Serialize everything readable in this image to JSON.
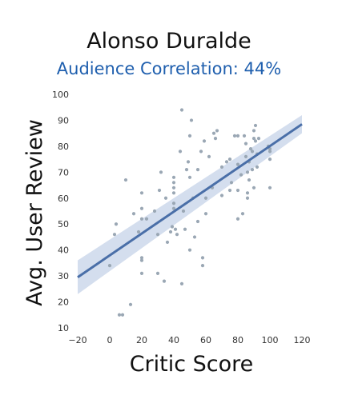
{
  "chart_data": {
    "type": "scatter",
    "title": "Alonso Duralde",
    "subtitle": "Audience Correlation: 44%",
    "xlabel": "Critic Score",
    "ylabel": "Avg. User Review",
    "xlim": [
      -20,
      120
    ],
    "ylim": [
      10,
      100
    ],
    "xticks": [
      -20,
      0,
      20,
      40,
      60,
      80,
      100,
      120
    ],
    "yticks": [
      10,
      20,
      30,
      40,
      50,
      60,
      70,
      80,
      90,
      100
    ],
    "grid": false,
    "colors": {
      "points": "#9aa7b4",
      "regression": "#4a6fa8",
      "band": "#c9d6ea"
    },
    "regression": {
      "x": [
        -20,
        120
      ],
      "y": [
        29.5,
        88.5
      ],
      "ci_lower": [
        23,
        85
      ],
      "ci_upper": [
        36,
        92
      ]
    },
    "points": [
      {
        "x": 0,
        "y": 34
      },
      {
        "x": 3,
        "y": 46
      },
      {
        "x": 4,
        "y": 50
      },
      {
        "x": 6,
        "y": 15
      },
      {
        "x": 8,
        "y": 15
      },
      {
        "x": 10,
        "y": 67
      },
      {
        "x": 13,
        "y": 19
      },
      {
        "x": 15,
        "y": 54
      },
      {
        "x": 18,
        "y": 47
      },
      {
        "x": 20,
        "y": 62
      },
      {
        "x": 20,
        "y": 56
      },
      {
        "x": 20,
        "y": 52
      },
      {
        "x": 20,
        "y": 37
      },
      {
        "x": 20,
        "y": 36
      },
      {
        "x": 20,
        "y": 31
      },
      {
        "x": 23,
        "y": 52
      },
      {
        "x": 28,
        "y": 55
      },
      {
        "x": 30,
        "y": 46
      },
      {
        "x": 30,
        "y": 31
      },
      {
        "x": 31,
        "y": 63
      },
      {
        "x": 32,
        "y": 70
      },
      {
        "x": 34,
        "y": 28
      },
      {
        "x": 35,
        "y": 60
      },
      {
        "x": 36,
        "y": 43
      },
      {
        "x": 38,
        "y": 47
      },
      {
        "x": 39,
        "y": 49
      },
      {
        "x": 40,
        "y": 68
      },
      {
        "x": 40,
        "y": 66
      },
      {
        "x": 40,
        "y": 64
      },
      {
        "x": 40,
        "y": 62
      },
      {
        "x": 40,
        "y": 58
      },
      {
        "x": 40,
        "y": 56
      },
      {
        "x": 41,
        "y": 48
      },
      {
        "x": 42,
        "y": 46
      },
      {
        "x": 44,
        "y": 78
      },
      {
        "x": 45,
        "y": 94
      },
      {
        "x": 45,
        "y": 27
      },
      {
        "x": 46,
        "y": 55
      },
      {
        "x": 47,
        "y": 48
      },
      {
        "x": 48,
        "y": 71
      },
      {
        "x": 49,
        "y": 74
      },
      {
        "x": 50,
        "y": 84
      },
      {
        "x": 50,
        "y": 68
      },
      {
        "x": 50,
        "y": 40
      },
      {
        "x": 51,
        "y": 90
      },
      {
        "x": 52,
        "y": 60
      },
      {
        "x": 53,
        "y": 45
      },
      {
        "x": 55,
        "y": 71
      },
      {
        "x": 55,
        "y": 51
      },
      {
        "x": 57,
        "y": 78
      },
      {
        "x": 58,
        "y": 37
      },
      {
        "x": 58,
        "y": 34
      },
      {
        "x": 59,
        "y": 82
      },
      {
        "x": 60,
        "y": 60
      },
      {
        "x": 60,
        "y": 54
      },
      {
        "x": 62,
        "y": 76
      },
      {
        "x": 64,
        "y": 64
      },
      {
        "x": 65,
        "y": 85
      },
      {
        "x": 66,
        "y": 83
      },
      {
        "x": 67,
        "y": 86
      },
      {
        "x": 70,
        "y": 72
      },
      {
        "x": 70,
        "y": 61
      },
      {
        "x": 73,
        "y": 74
      },
      {
        "x": 75,
        "y": 75
      },
      {
        "x": 75,
        "y": 63
      },
      {
        "x": 76,
        "y": 66
      },
      {
        "x": 78,
        "y": 84
      },
      {
        "x": 80,
        "y": 84
      },
      {
        "x": 80,
        "y": 73
      },
      {
        "x": 80,
        "y": 63
      },
      {
        "x": 80,
        "y": 52
      },
      {
        "x": 82,
        "y": 69
      },
      {
        "x": 83,
        "y": 54
      },
      {
        "x": 84,
        "y": 84
      },
      {
        "x": 85,
        "y": 81
      },
      {
        "x": 85,
        "y": 76
      },
      {
        "x": 86,
        "y": 70
      },
      {
        "x": 86,
        "y": 62
      },
      {
        "x": 86,
        "y": 60
      },
      {
        "x": 87,
        "y": 74
      },
      {
        "x": 87,
        "y": 67
      },
      {
        "x": 88,
        "y": 79
      },
      {
        "x": 89,
        "y": 78
      },
      {
        "x": 89,
        "y": 71
      },
      {
        "x": 90,
        "y": 86
      },
      {
        "x": 90,
        "y": 83
      },
      {
        "x": 90,
        "y": 64
      },
      {
        "x": 91,
        "y": 88
      },
      {
        "x": 91,
        "y": 82
      },
      {
        "x": 92,
        "y": 77
      },
      {
        "x": 92,
        "y": 72
      },
      {
        "x": 93,
        "y": 83
      },
      {
        "x": 99,
        "y": 80
      },
      {
        "x": 100,
        "y": 79
      },
      {
        "x": 100,
        "y": 78
      },
      {
        "x": 100,
        "y": 75
      },
      {
        "x": 100,
        "y": 64
      }
    ]
  }
}
